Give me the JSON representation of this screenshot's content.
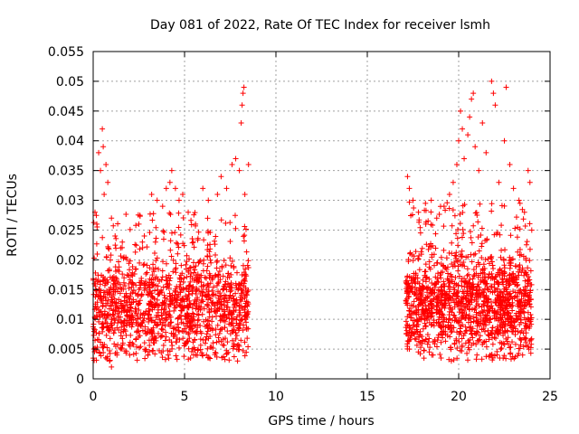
{
  "chart_data": {
    "type": "scatter",
    "title": "Day 081 of 2022, Rate Of TEC Index for receiver lsmh",
    "xlabel": "GPS time / hours",
    "ylabel": "ROTI / TECUs",
    "xlim": [
      0,
      25
    ],
    "ylim": [
      0,
      0.055
    ],
    "xticks": [
      "0",
      "5",
      "10",
      "15",
      "20",
      "25"
    ],
    "yticks": [
      "0",
      "0.005",
      "0.01",
      "0.015",
      "0.02",
      "0.025",
      "0.03",
      "0.035",
      "0.04",
      "0.045",
      "0.05",
      "0.055"
    ],
    "grid": true,
    "marker": "plus",
    "marker_color": "#ff0000",
    "series": [
      {
        "values": [
          [
            0.1,
            0.028
          ],
          [
            0.2,
            0.026
          ],
          [
            0.3,
            0.038
          ],
          [
            0.4,
            0.035
          ],
          [
            0.5,
            0.042
          ],
          [
            0.55,
            0.039
          ],
          [
            0.7,
            0.036
          ],
          [
            0.8,
            0.033
          ],
          [
            0.6,
            0.031
          ],
          [
            1.0,
            0.027
          ],
          [
            1.2,
            0.024
          ],
          [
            1.5,
            0.022
          ],
          [
            0.9,
            0.003
          ],
          [
            1.0,
            0.002
          ],
          [
            1.3,
            0.004
          ],
          [
            2.5,
            0.026
          ],
          [
            2.8,
            0.024
          ],
          [
            3.2,
            0.031
          ],
          [
            3.5,
            0.03
          ],
          [
            3.8,
            0.029
          ],
          [
            4.0,
            0.032
          ],
          [
            4.2,
            0.033
          ],
          [
            4.3,
            0.035
          ],
          [
            4.5,
            0.032
          ],
          [
            4.7,
            0.03
          ],
          [
            4.9,
            0.031
          ],
          [
            5.2,
            0.028
          ],
          [
            5.6,
            0.026
          ],
          [
            6.0,
            0.032
          ],
          [
            6.3,
            0.03
          ],
          [
            6.8,
            0.031
          ],
          [
            7.0,
            0.034
          ],
          [
            7.3,
            0.032
          ],
          [
            7.6,
            0.036
          ],
          [
            7.8,
            0.037
          ],
          [
            8.0,
            0.035
          ],
          [
            8.1,
            0.043
          ],
          [
            8.15,
            0.046
          ],
          [
            8.2,
            0.048
          ],
          [
            8.25,
            0.049
          ],
          [
            8.5,
            0.036
          ],
          [
            8.3,
            0.031
          ],
          [
            4.1,
            0.004
          ],
          [
            5.5,
            0.004
          ],
          [
            6.2,
            0.004
          ],
          [
            7.9,
            0.003
          ],
          [
            2.0,
            0.004
          ],
          [
            3.0,
            0.004
          ],
          [
            17.2,
            0.034
          ],
          [
            17.3,
            0.032
          ],
          [
            17.5,
            0.03
          ],
          [
            17.8,
            0.028
          ],
          [
            18.2,
            0.026
          ],
          [
            18.5,
            0.03
          ],
          [
            18.8,
            0.027
          ],
          [
            19.2,
            0.029
          ],
          [
            19.5,
            0.031
          ],
          [
            19.7,
            0.033
          ],
          [
            19.9,
            0.036
          ],
          [
            20.0,
            0.04
          ],
          [
            20.1,
            0.045
          ],
          [
            20.2,
            0.042
          ],
          [
            20.3,
            0.037
          ],
          [
            20.5,
            0.041
          ],
          [
            20.6,
            0.044
          ],
          [
            20.7,
            0.047
          ],
          [
            20.8,
            0.048
          ],
          [
            20.9,
            0.039
          ],
          [
            21.1,
            0.035
          ],
          [
            21.3,
            0.043
          ],
          [
            21.5,
            0.038
          ],
          [
            21.8,
            0.05
          ],
          [
            21.9,
            0.048
          ],
          [
            22.0,
            0.046
          ],
          [
            22.2,
            0.033
          ],
          [
            22.5,
            0.04
          ],
          [
            22.6,
            0.049
          ],
          [
            22.8,
            0.036
          ],
          [
            23.0,
            0.032
          ],
          [
            23.3,
            0.03
          ],
          [
            23.6,
            0.028
          ],
          [
            23.8,
            0.035
          ],
          [
            23.9,
            0.033
          ],
          [
            24.0,
            0.025
          ],
          [
            17.3,
            0.005
          ],
          [
            18.6,
            0.004
          ],
          [
            19.6,
            0.003
          ],
          [
            21.0,
            0.004
          ],
          [
            23.5,
            0.004
          ],
          [
            22.3,
            0.005
          ]
        ]
      }
    ],
    "dense_bands": [
      {
        "x": [
          0.0,
          8.5
        ],
        "y_mean": 0.0115,
        "y_spread": 0.0045,
        "peak_y": 0.028,
        "seed": 11
      },
      {
        "x": [
          17.1,
          24.0
        ],
        "y_mean": 0.012,
        "y_spread": 0.0045,
        "peak_y": 0.03,
        "seed": 29
      }
    ]
  }
}
